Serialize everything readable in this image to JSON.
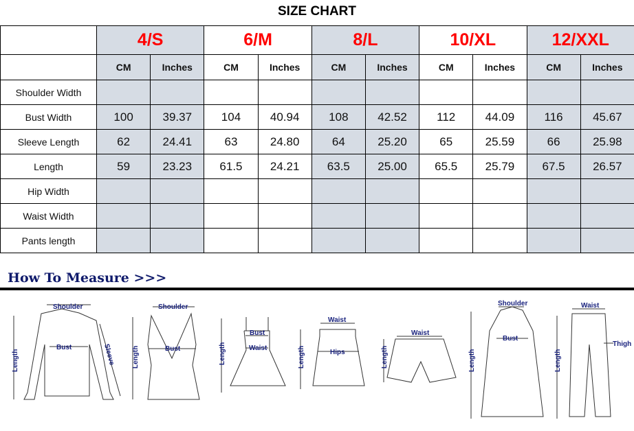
{
  "title": "SIZE CHART",
  "sizes": [
    "4/S",
    "6/M",
    "8/L",
    "10/XL",
    "12/XXL"
  ],
  "units": [
    "CM",
    "Inches"
  ],
  "rows": [
    {
      "label": "Shoulder Width",
      "values": [
        "",
        "",
        "",
        "",
        "",
        "",
        "",
        "",
        "",
        ""
      ]
    },
    {
      "label": "Bust Width",
      "values": [
        "100",
        "39.37",
        "104",
        "40.94",
        "108",
        "42.52",
        "112",
        "44.09",
        "116",
        "45.67"
      ]
    },
    {
      "label": "Sleeve Length",
      "values": [
        "62",
        "24.41",
        "63",
        "24.80",
        "64",
        "25.20",
        "65",
        "25.59",
        "66",
        "25.98"
      ]
    },
    {
      "label": "Length",
      "values": [
        "59",
        "23.23",
        "61.5",
        "24.21",
        "63.5",
        "25.00",
        "65.5",
        "25.79",
        "67.5",
        "26.57"
      ]
    },
    {
      "label": "Hip Width",
      "values": [
        "",
        "",
        "",
        "",
        "",
        "",
        "",
        "",
        "",
        ""
      ]
    },
    {
      "label": "Waist Width",
      "values": [
        "",
        "",
        "",
        "",
        "",
        "",
        "",
        "",
        "",
        ""
      ]
    },
    {
      "label": "Pants length",
      "values": [
        "",
        "",
        "",
        "",
        "",
        "",
        "",
        "",
        "",
        ""
      ]
    }
  ],
  "colors": {
    "size_label": "#ff0000",
    "shaded_column": "#d6dce4",
    "measure_heading": "#0f1a6b"
  },
  "how_to_measure": {
    "heading": "How To Measure >>>",
    "figures": [
      {
        "garment": "blouse",
        "labels": [
          "Shoulder",
          "Bust",
          "Length",
          "Sleeve"
        ]
      },
      {
        "garment": "tank-top",
        "labels": [
          "Shoulder",
          "Bust",
          "Length"
        ]
      },
      {
        "garment": "dress",
        "labels": [
          "Bust",
          "Waist",
          "Length"
        ]
      },
      {
        "garment": "skirt",
        "labels": [
          "Waist",
          "Hips",
          "Length"
        ]
      },
      {
        "garment": "shorts",
        "labels": [
          "Waist",
          "Length"
        ]
      },
      {
        "garment": "coat",
        "labels": [
          "Shoulder",
          "Bust",
          "Length"
        ]
      },
      {
        "garment": "pants",
        "labels": [
          "Waist",
          "Thigh",
          "Length"
        ]
      }
    ]
  }
}
